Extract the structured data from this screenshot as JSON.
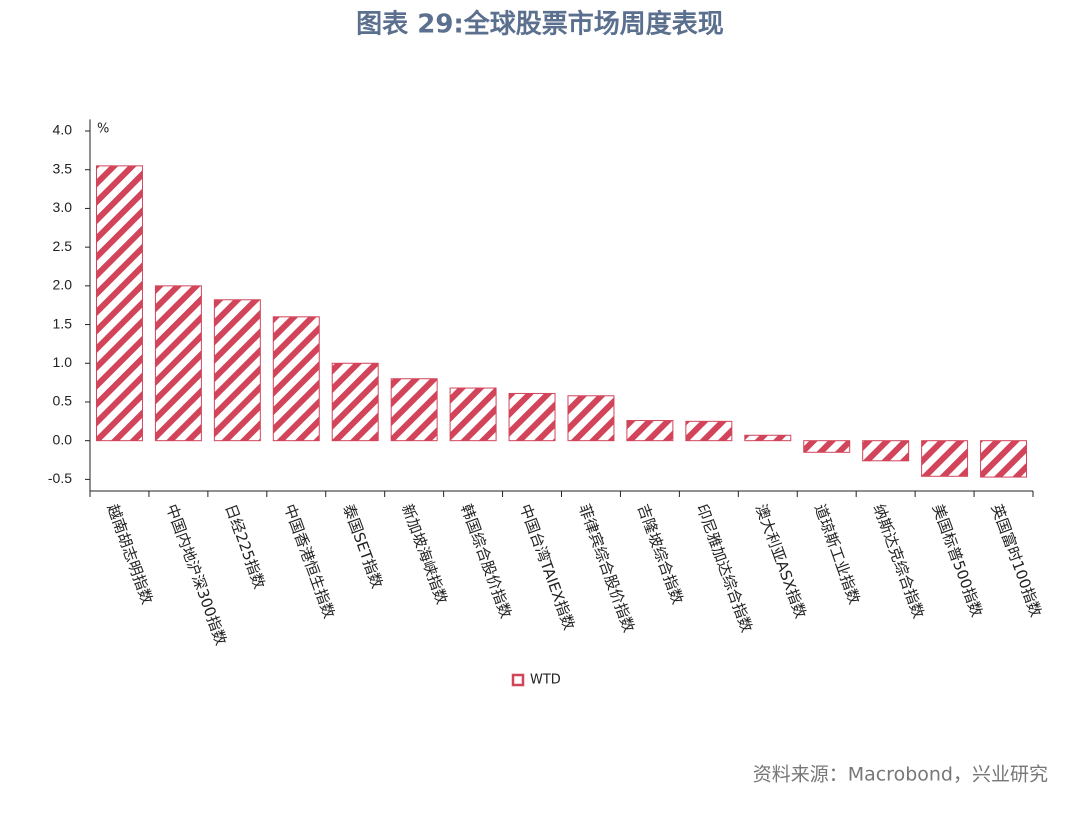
{
  "chart_data": {
    "type": "bar",
    "title": "图表 29:全球股票市场周度表现",
    "y_unit": "%",
    "categories": [
      "越南胡志明指数",
      "中国内地沪深300指数",
      "日经225指数",
      "中国香港恒生指数",
      "泰国SET指数",
      "新加坡海峡指数",
      "韩国综合股价指数",
      "中国台湾TAIEX指数",
      "菲律宾综合股价指数",
      "吉隆坡综合指数",
      "印尼雅加达综合指数",
      "澳大利亚ASX指数",
      "道琼斯工业指数",
      "纳斯达克综合指数",
      "美国标普500指数",
      "英国富时100指数"
    ],
    "series": [
      {
        "name": "WTD",
        "color": "#d2445a",
        "values": [
          3.55,
          2.0,
          1.82,
          1.6,
          1.0,
          0.8,
          0.68,
          0.61,
          0.58,
          0.26,
          0.25,
          0.07,
          -0.15,
          -0.26,
          -0.46,
          -0.47
        ]
      }
    ],
    "ylim": [
      -0.65,
      4.15
    ],
    "yticks": [
      {
        "value": 4,
        "label": "4.0"
      },
      3.5,
      {
        "value": 3,
        "label": "3.0"
      },
      2.5,
      {
        "value": 2,
        "label": "2.0"
      },
      1.5,
      {
        "value": 1,
        "label": "1.0"
      },
      0.5,
      {
        "value": 0,
        "label": "0.0"
      },
      -0.5
    ],
    "legend": "bottom",
    "source": "资料来源：Macrobond，兴业研究"
  }
}
